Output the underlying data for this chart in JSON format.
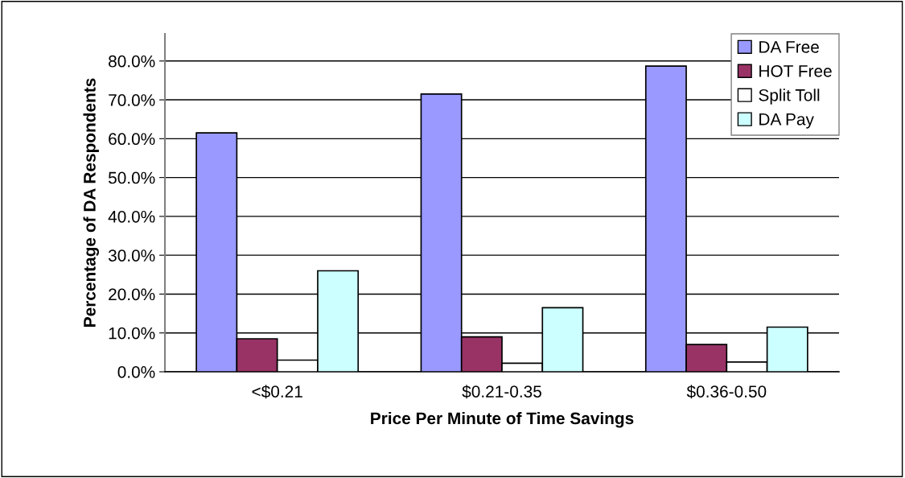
{
  "chart_data": {
    "type": "bar",
    "xlabel": "Price Per Minute of Time Savings",
    "ylabel": "Percentage of DA Respondents",
    "categories": [
      "<$0.21",
      "$0.21-0.35",
      "$0.36-0.50"
    ],
    "series": [
      {
        "name": "DA Free",
        "color": "#9999ff",
        "values": [
          61.5,
          71.5,
          78.7
        ]
      },
      {
        "name": "HOT Free",
        "color": "#993366",
        "values": [
          8.5,
          9.0,
          7.0
        ]
      },
      {
        "name": "Split Toll",
        "color": "#ffffff",
        "values": [
          3.0,
          2.2,
          2.5
        ]
      },
      {
        "name": "DA Pay",
        "color": "#ccffff",
        "values": [
          26.0,
          16.5,
          11.5
        ]
      }
    ],
    "ylim": [
      0,
      87
    ],
    "yticks": [
      {
        "value": 0,
        "label": "0.0%"
      },
      {
        "value": 10,
        "label": "10.0%"
      },
      {
        "value": 20,
        "label": "20.0%"
      },
      {
        "value": 30,
        "label": "30.0%"
      },
      {
        "value": 40,
        "label": "40.0%"
      },
      {
        "value": 50,
        "label": "50.0%"
      },
      {
        "value": 60,
        "label": "60.0%"
      },
      {
        "value": 70,
        "label": "70.0%"
      },
      {
        "value": 80,
        "label": "80.0%"
      }
    ],
    "grid": "y",
    "legend": "top right"
  }
}
